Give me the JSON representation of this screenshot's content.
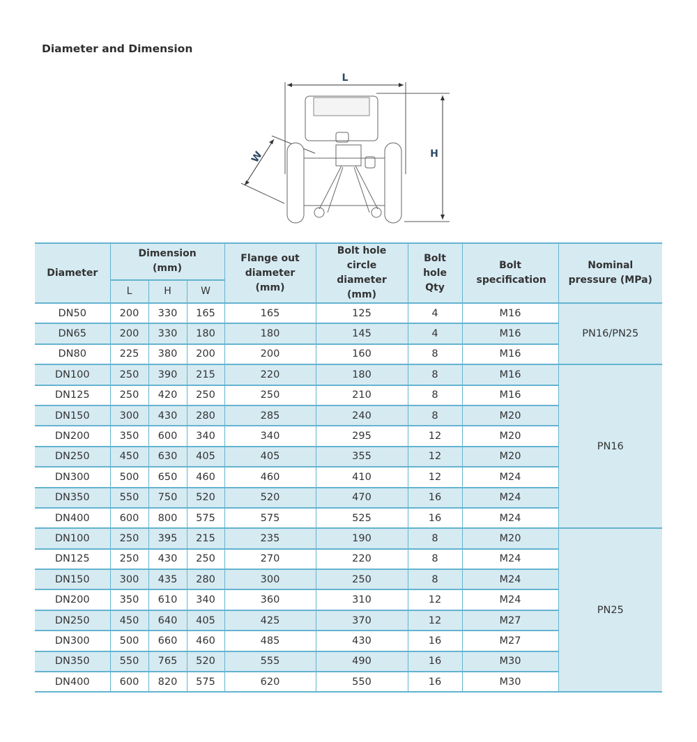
{
  "title": "Diameter and Dimension",
  "diagram": {
    "label_l": "L",
    "label_h": "H",
    "label_w": "W"
  },
  "table": {
    "headers": {
      "diameter": "Diameter",
      "dimension": "Dimension (mm)",
      "l": "L",
      "h": "H",
      "w": "W",
      "flange": "Flange out diameter (mm)",
      "bolt_circle": "Bolt hole circle diameter (mm)",
      "bolt_qty": "Bolt hole Qty",
      "bolt_spec": "Bolt specification",
      "pressure": "Nominal pressure (MPa)"
    },
    "groups": [
      {
        "pressure": "PN16/PN25",
        "rows": [
          [
            "DN50",
            "200",
            "330",
            "165",
            "165",
            "125",
            "4",
            "M16"
          ],
          [
            "DN65",
            "200",
            "330",
            "180",
            "180",
            "145",
            "4",
            "M16"
          ],
          [
            "DN80",
            "225",
            "380",
            "200",
            "200",
            "160",
            "8",
            "M16"
          ]
        ]
      },
      {
        "pressure": "PN16",
        "rows": [
          [
            "DN100",
            "250",
            "390",
            "215",
            "220",
            "180",
            "8",
            "M16"
          ],
          [
            "DN125",
            "250",
            "420",
            "250",
            "250",
            "210",
            "8",
            "M16"
          ],
          [
            "DN150",
            "300",
            "430",
            "280",
            "285",
            "240",
            "8",
            "M20"
          ],
          [
            "DN200",
            "350",
            "600",
            "340",
            "340",
            "295",
            "12",
            "M20"
          ],
          [
            "DN250",
            "450",
            "630",
            "405",
            "405",
            "355",
            "12",
            "M20"
          ],
          [
            "DN300",
            "500",
            "650",
            "460",
            "460",
            "410",
            "12",
            "M24"
          ],
          [
            "DN350",
            "550",
            "750",
            "520",
            "520",
            "470",
            "16",
            "M24"
          ],
          [
            "DN400",
            "600",
            "800",
            "575",
            "575",
            "525",
            "16",
            "M24"
          ]
        ]
      },
      {
        "pressure": "PN25",
        "rows": [
          [
            "DN100",
            "250",
            "395",
            "215",
            "235",
            "190",
            "8",
            "M20"
          ],
          [
            "DN125",
            "250",
            "430",
            "250",
            "270",
            "220",
            "8",
            "M24"
          ],
          [
            "DN150",
            "300",
            "435",
            "280",
            "300",
            "250",
            "8",
            "M24"
          ],
          [
            "DN200",
            "350",
            "610",
            "340",
            "360",
            "310",
            "12",
            "M24"
          ],
          [
            "DN250",
            "450",
            "640",
            "405",
            "425",
            "370",
            "12",
            "M27"
          ],
          [
            "DN300",
            "500",
            "660",
            "460",
            "485",
            "430",
            "16",
            "M27"
          ],
          [
            "DN350",
            "550",
            "765",
            "520",
            "555",
            "490",
            "16",
            "M30"
          ],
          [
            "DN400",
            "600",
            "820",
            "575",
            "620",
            "550",
            "16",
            "M30"
          ]
        ]
      }
    ]
  }
}
